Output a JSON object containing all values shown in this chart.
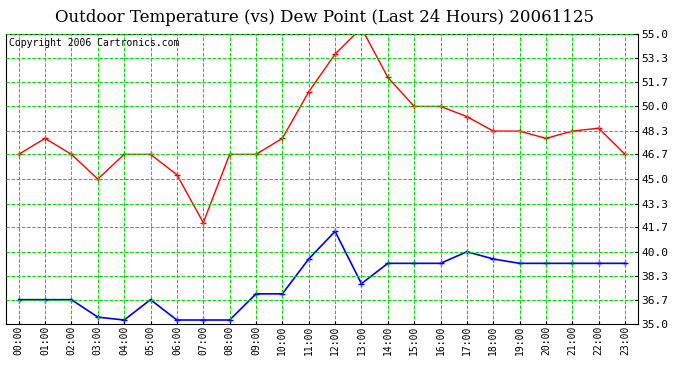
{
  "title": "Outdoor Temperature (vs) Dew Point (Last 24 Hours) 20061125",
  "copyright": "Copyright 2006 Cartronics.com",
  "hours": [
    "00:00",
    "01:00",
    "02:00",
    "03:00",
    "04:00",
    "05:00",
    "06:00",
    "07:00",
    "08:00",
    "09:00",
    "10:00",
    "11:00",
    "12:00",
    "13:00",
    "14:00",
    "15:00",
    "16:00",
    "17:00",
    "18:00",
    "19:00",
    "20:00",
    "21:00",
    "22:00",
    "23:00"
  ],
  "temp": [
    46.7,
    47.8,
    46.7,
    45.0,
    46.7,
    46.7,
    45.3,
    42.0,
    46.7,
    46.7,
    47.8,
    51.0,
    53.6,
    55.4,
    52.0,
    50.0,
    50.0,
    49.3,
    48.3,
    48.3,
    47.8,
    48.3,
    48.5,
    46.7
  ],
  "dew": [
    36.7,
    36.7,
    36.7,
    35.5,
    35.3,
    36.7,
    35.3,
    35.3,
    35.3,
    37.1,
    37.1,
    39.5,
    41.4,
    37.8,
    39.2,
    39.2,
    39.2,
    40.0,
    39.5,
    39.2,
    39.2,
    39.2,
    39.2,
    39.2
  ],
  "ylim": [
    35.0,
    55.0
  ],
  "yticks": [
    35.0,
    36.7,
    38.3,
    40.0,
    41.7,
    43.3,
    45.0,
    46.7,
    48.3,
    50.0,
    51.7,
    53.3,
    55.0
  ],
  "temp_color": "#ff0000",
  "dew_color": "#0000ff",
  "grid_color": "#00dd00",
  "bg_color": "#ffffff",
  "plot_bg": "#ffffff",
  "title_fontsize": 12,
  "copyright_fontsize": 7,
  "tick_fontsize": 8,
  "xtick_fontsize": 7
}
